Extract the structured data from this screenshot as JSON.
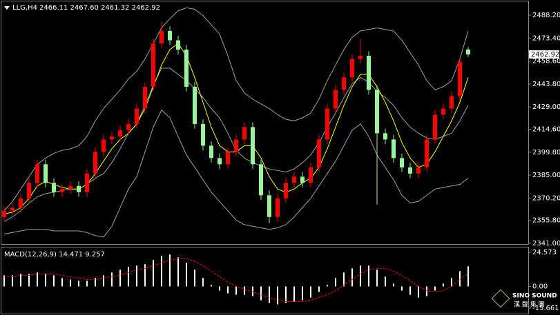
{
  "chart_data": [
    {
      "type": "candlestick",
      "title": "LLG,H4",
      "subtitle": "2466.11 2467.60 2461.32 2462.92",
      "open": [
        2358,
        2362,
        2364,
        2370,
        2380,
        2392,
        2380,
        2374,
        2376,
        2378,
        2374,
        2386,
        2400,
        2408,
        2410,
        2414,
        2418,
        2428,
        2442,
        2470,
        2478,
        2472,
        2466,
        2442,
        2418,
        2404,
        2396,
        2392,
        2400,
        2408,
        2416,
        2392,
        2372,
        2358,
        2370,
        2380,
        2384,
        2380,
        2390,
        2408,
        2428,
        2440,
        2448,
        2460,
        2462,
        2440,
        2412,
        2408,
        2396,
        2390,
        2386,
        2390,
        2408,
        2424,
        2428,
        2436,
        2466.11
      ],
      "high": [
        2365,
        2367,
        2373,
        2383,
        2395,
        2395,
        2383,
        2379,
        2381,
        2381,
        2389,
        2403,
        2411,
        2413,
        2417,
        2421,
        2431,
        2445,
        2473,
        2484,
        2481,
        2475,
        2469,
        2445,
        2421,
        2407,
        2399,
        2403,
        2411,
        2419,
        2419,
        2395,
        2375,
        2373,
        2383,
        2387,
        2387,
        2393,
        2411,
        2431,
        2443,
        2451,
        2463,
        2473,
        2465,
        2443,
        2415,
        2411,
        2399,
        2393,
        2393,
        2411,
        2427,
        2431,
        2439,
        2461,
        2467.6
      ],
      "low": [
        2355,
        2359,
        2361,
        2367,
        2377,
        2377,
        2371,
        2371,
        2373,
        2371,
        2371,
        2383,
        2397,
        2405,
        2407,
        2411,
        2415,
        2425,
        2439,
        2467,
        2469,
        2463,
        2439,
        2415,
        2401,
        2393,
        2389,
        2389,
        2397,
        2405,
        2389,
        2369,
        2354,
        2355,
        2367,
        2377,
        2377,
        2377,
        2387,
        2405,
        2425,
        2437,
        2445,
        2457,
        2437,
        2366,
        2405,
        2393,
        2387,
        2383,
        2383,
        2387,
        2405,
        2421,
        2425,
        2433,
        2461.32
      ],
      "close": [
        2362,
        2364,
        2370,
        2380,
        2392,
        2380,
        2374,
        2376,
        2378,
        2374,
        2386,
        2400,
        2408,
        2410,
        2414,
        2418,
        2428,
        2442,
        2470,
        2478,
        2472,
        2466,
        2442,
        2418,
        2404,
        2396,
        2392,
        2400,
        2408,
        2416,
        2392,
        2372,
        2358,
        2370,
        2380,
        2384,
        2380,
        2390,
        2408,
        2428,
        2440,
        2448,
        2460,
        2462,
        2440,
        2412,
        2408,
        2396,
        2390,
        2386,
        2390,
        2408,
        2424,
        2428,
        2436,
        2458,
        2462.92
      ],
      "up_color": "#ff0000",
      "down_color": "#98f598",
      "overlays": [
        {
          "color": "#a0a0a0",
          "values": [
            2362,
            2368,
            2376,
            2384,
            2392,
            2396,
            2399,
            2401,
            2402,
            2404,
            2410,
            2420,
            2428,
            2434,
            2440,
            2447,
            2452,
            2460,
            2470,
            2480,
            2486,
            2491,
            2493,
            2492,
            2488,
            2482,
            2476,
            2462,
            2446,
            2438,
            2434,
            2431,
            2428,
            2424,
            2421,
            2420,
            2422,
            2425,
            2434,
            2446,
            2456,
            2466,
            2474,
            2478,
            2479,
            2480,
            2479,
            2478,
            2472,
            2464,
            2456,
            2446,
            2440,
            2442,
            2446,
            2460,
            2478
          ]
        },
        {
          "color": "#a0a0a0",
          "values": [
            2355,
            2358,
            2362,
            2367,
            2371,
            2373,
            2374,
            2375,
            2376,
            2376,
            2379,
            2383,
            2386,
            2393,
            2402,
            2412,
            2418,
            2430,
            2443,
            2454,
            2454,
            2450,
            2446,
            2441,
            2435,
            2428,
            2422,
            2412,
            2401,
            2396,
            2393,
            2391,
            2389,
            2388,
            2387,
            2389,
            2393,
            2398,
            2406,
            2416,
            2425,
            2435,
            2444,
            2448,
            2445,
            2439,
            2435,
            2430,
            2422,
            2416,
            2412,
            2409,
            2408,
            2410,
            2412,
            2420,
            2430
          ]
        },
        {
          "color": "#a0a0a0",
          "values": [
            2347,
            2348,
            2349,
            2350,
            2350,
            2350,
            2349,
            2349,
            2349,
            2349,
            2348,
            2346,
            2345,
            2352,
            2364,
            2376,
            2384,
            2400,
            2416,
            2427,
            2422,
            2410,
            2398,
            2390,
            2382,
            2374,
            2368,
            2362,
            2356,
            2353,
            2352,
            2351,
            2350,
            2351,
            2353,
            2358,
            2364,
            2370,
            2378,
            2386,
            2394,
            2404,
            2414,
            2418,
            2410,
            2398,
            2390,
            2382,
            2372,
            2367,
            2368,
            2372,
            2376,
            2377,
            2378,
            2379,
            2383
          ]
        },
        {
          "color": "#ffff00",
          "values": [
            2360,
            2361,
            2364,
            2370,
            2378,
            2381,
            2379,
            2377,
            2376,
            2376,
            2379,
            2386,
            2394,
            2402,
            2408,
            2412,
            2418,
            2428,
            2442,
            2456,
            2466,
            2470,
            2462,
            2448,
            2432,
            2416,
            2404,
            2400,
            2400,
            2404,
            2404,
            2396,
            2384,
            2376,
            2374,
            2376,
            2380,
            2383,
            2390,
            2402,
            2416,
            2430,
            2442,
            2450,
            2450,
            2442,
            2432,
            2420,
            2406,
            2396,
            2390,
            2392,
            2400,
            2410,
            2420,
            2432,
            2448
          ]
        }
      ],
      "ylim": [
        2340.1,
        2498
      ],
      "yticks": [
        {
          "value": 2488.2,
          "label": "2488.20"
        },
        {
          "value": 2473.4,
          "label": "2473.40"
        },
        {
          "value": 2458.6,
          "label": "2458.60"
        },
        {
          "value": 2443.8,
          "label": "2443.80"
        },
        {
          "value": 2429,
          "label": "2429.00"
        },
        {
          "value": 2414.6,
          "label": "2414.60"
        },
        {
          "value": 2399.8,
          "label": "2399.80"
        },
        {
          "value": 2385,
          "label": "2385.00"
        },
        {
          "value": 2370.2,
          "label": "2370.20"
        },
        {
          "value": 2355.8,
          "label": "2355.80"
        },
        {
          "value": 2341,
          "label": "2341.00"
        }
      ],
      "last_price": 2462.92
    },
    {
      "type": "macd",
      "title": "MACD(12,26,9) 14.471 9.257",
      "histogram": [
        8,
        8,
        9,
        9,
        10,
        9,
        8,
        6,
        5,
        4,
        4,
        6,
        8,
        10,
        12,
        14,
        15,
        16,
        19,
        22,
        23,
        21,
        17,
        12,
        6,
        1,
        -3,
        -5,
        -6,
        -6,
        -7,
        -10,
        -12,
        -13,
        -12,
        -11,
        -10,
        -8,
        -4,
        1,
        6,
        10,
        13,
        15,
        15,
        12,
        7,
        2,
        -3,
        -6,
        -8,
        -7,
        -3,
        2,
        6,
        11,
        14.471
      ],
      "hist_color": "#ffffff",
      "signal": [
        7,
        7,
        8,
        8,
        9,
        9,
        9,
        8,
        7,
        6,
        5,
        5,
        6,
        7,
        8,
        10,
        12,
        13,
        15,
        17,
        19,
        20,
        20,
        18,
        15,
        11,
        7,
        3,
        0,
        -2,
        -4,
        -6,
        -8,
        -10,
        -11,
        -11,
        -11,
        -10,
        -8,
        -6,
        -3,
        1,
        5,
        9,
        12,
        13,
        13,
        11,
        8,
        4,
        0,
        -3,
        -4,
        -3,
        0,
        5,
        9.257
      ],
      "signal_color": "#ff0000",
      "ylim": [
        -19.63,
        28.55
      ],
      "yticks": [
        24.573,
        {
          "value": 0,
          "label": "0.00"
        },
        -15.661
      ]
    }
  ],
  "logo": {
    "name": "SINO SOUND",
    "sub": "漢 聲 集 團"
  }
}
